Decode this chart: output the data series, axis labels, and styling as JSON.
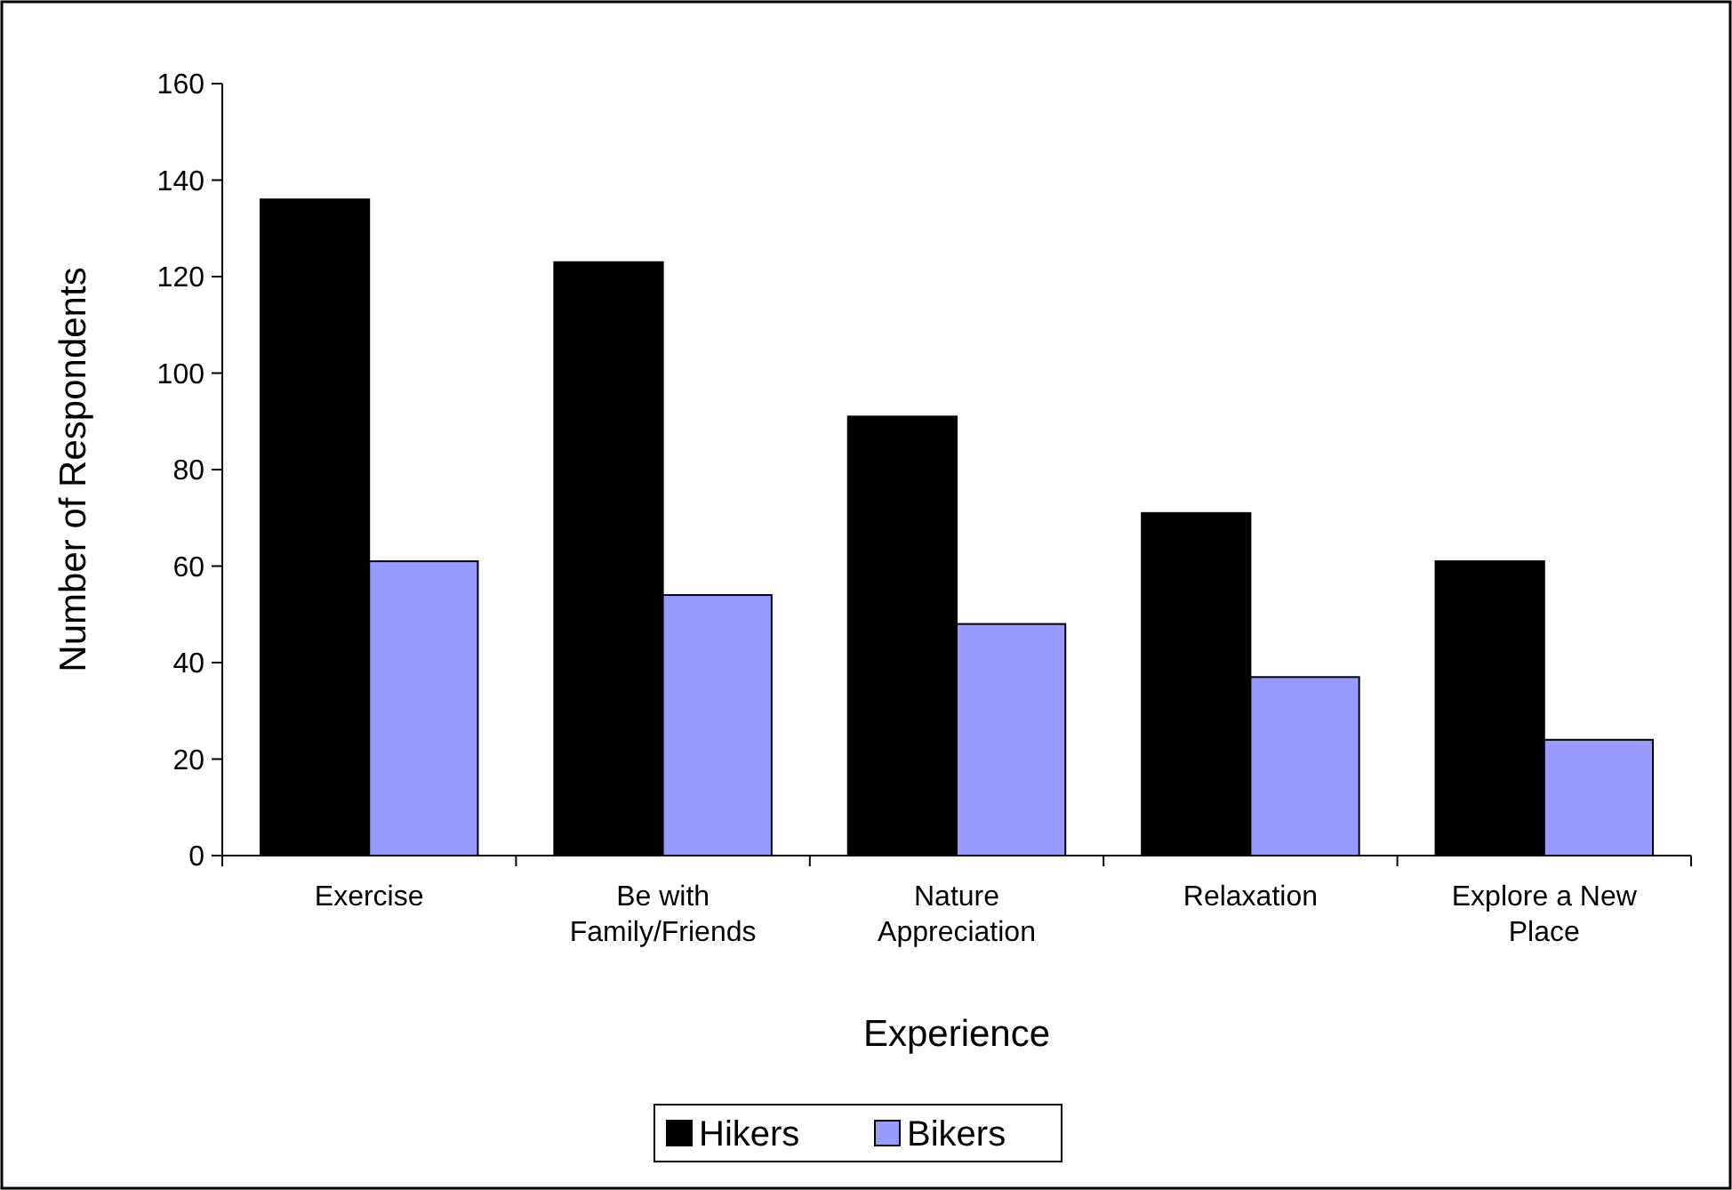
{
  "chart_data": {
    "type": "bar",
    "xlabel": "Experience",
    "ylabel": "Number of Respondents",
    "categories": [
      "Exercise",
      "Be with Family/Friends",
      "Nature Appreciation",
      "Relaxation",
      "Explore a New Place"
    ],
    "series": [
      {
        "name": "Hikers",
        "color": "#000000",
        "values": [
          136,
          123,
          91,
          71,
          61
        ]
      },
      {
        "name": "Bikers",
        "color": "#9999ff",
        "values": [
          61,
          54,
          48,
          37,
          24
        ]
      }
    ],
    "ylim": [
      0,
      160
    ],
    "yticks": [
      0,
      20,
      40,
      60,
      80,
      100,
      120,
      140,
      160
    ],
    "grid": false,
    "legend": "bottom"
  }
}
